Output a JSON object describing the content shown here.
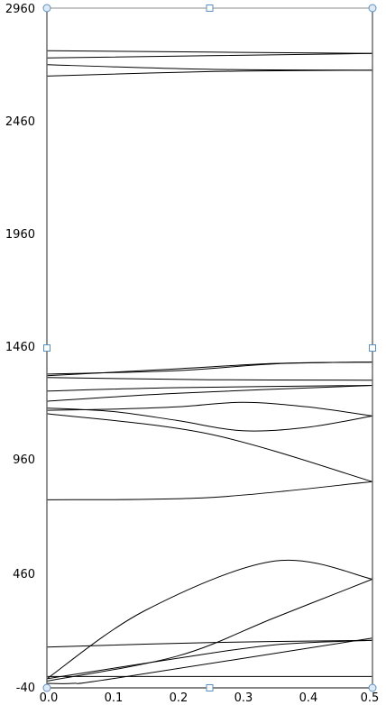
{
  "chart_data": {
    "type": "line",
    "title": "",
    "xlabel": "",
    "ylabel": "",
    "xlim": [
      0.0,
      0.5
    ],
    "ylim": [
      -40,
      2960
    ],
    "x_ticks": [
      "0.0",
      "0.1",
      "0.2",
      "0.3",
      "0.4",
      "0.5"
    ],
    "y_ticks": [
      "2960",
      "2460",
      "1960",
      "1460",
      "960",
      "460",
      "-40"
    ],
    "grid": false,
    "legend": "none",
    "selected": true,
    "line_color": "#000000",
    "series": [
      {
        "points": [
          [
            0.0,
            2772
          ],
          [
            0.5,
            2760
          ]
        ]
      },
      {
        "points": [
          [
            0.0,
            2740
          ],
          [
            0.5,
            2760
          ]
        ]
      },
      {
        "points": [
          [
            0.0,
            2710
          ],
          [
            0.25,
            2690
          ],
          [
            0.5,
            2686
          ]
        ]
      },
      {
        "points": [
          [
            0.0,
            2660
          ],
          [
            0.25,
            2680
          ],
          [
            0.5,
            2686
          ]
        ]
      },
      {
        "points": [
          [
            0.0,
            1345
          ],
          [
            0.2,
            1360
          ],
          [
            0.35,
            1390
          ],
          [
            0.5,
            1398
          ]
        ]
      },
      {
        "points": [
          [
            0.0,
            1338
          ],
          [
            0.2,
            1368
          ],
          [
            0.35,
            1392
          ],
          [
            0.5,
            1398
          ]
        ]
      },
      {
        "points": [
          [
            0.0,
            1330
          ],
          [
            0.25,
            1320
          ],
          [
            0.5,
            1318
          ]
        ]
      },
      {
        "points": [
          [
            0.0,
            1270
          ],
          [
            0.2,
            1285
          ],
          [
            0.5,
            1295
          ]
        ]
      },
      {
        "points": [
          [
            0.0,
            1225
          ],
          [
            0.2,
            1260
          ],
          [
            0.5,
            1295
          ]
        ]
      },
      {
        "points": [
          [
            0.0,
            1195
          ],
          [
            0.1,
            1180
          ],
          [
            0.2,
            1140
          ],
          [
            0.3,
            1095
          ],
          [
            0.4,
            1110
          ],
          [
            0.5,
            1160
          ]
        ]
      },
      {
        "points": [
          [
            0.0,
            1185
          ],
          [
            0.1,
            1190
          ],
          [
            0.2,
            1200
          ],
          [
            0.3,
            1220
          ],
          [
            0.4,
            1200
          ],
          [
            0.5,
            1160
          ]
        ]
      },
      {
        "points": [
          [
            0.0,
            1170
          ],
          [
            0.25,
            1080
          ],
          [
            0.5,
            870
          ]
        ]
      },
      {
        "points": [
          [
            0.0,
            790
          ],
          [
            0.25,
            800
          ],
          [
            0.5,
            870
          ]
        ]
      },
      {
        "points": [
          [
            0.0,
            0
          ],
          [
            0.15,
            300
          ],
          [
            0.35,
            520
          ],
          [
            0.5,
            440
          ]
        ]
      },
      {
        "points": [
          [
            0.0,
            -10
          ],
          [
            0.2,
            100
          ],
          [
            0.35,
            270
          ],
          [
            0.5,
            440
          ]
        ]
      },
      {
        "points": [
          [
            0.0,
            140
          ],
          [
            0.25,
            160
          ],
          [
            0.5,
            170
          ]
        ]
      },
      {
        "points": [
          [
            0.0,
            0
          ],
          [
            0.2,
            90
          ],
          [
            0.35,
            150
          ],
          [
            0.5,
            170
          ]
        ]
      },
      {
        "points": [
          [
            0.0,
            -20
          ],
          [
            0.04,
            -20
          ],
          [
            0.1,
            0
          ],
          [
            0.5,
            180
          ]
        ]
      },
      {
        "points": [
          [
            0.0,
            10
          ],
          [
            0.5,
            10
          ]
        ]
      }
    ]
  }
}
